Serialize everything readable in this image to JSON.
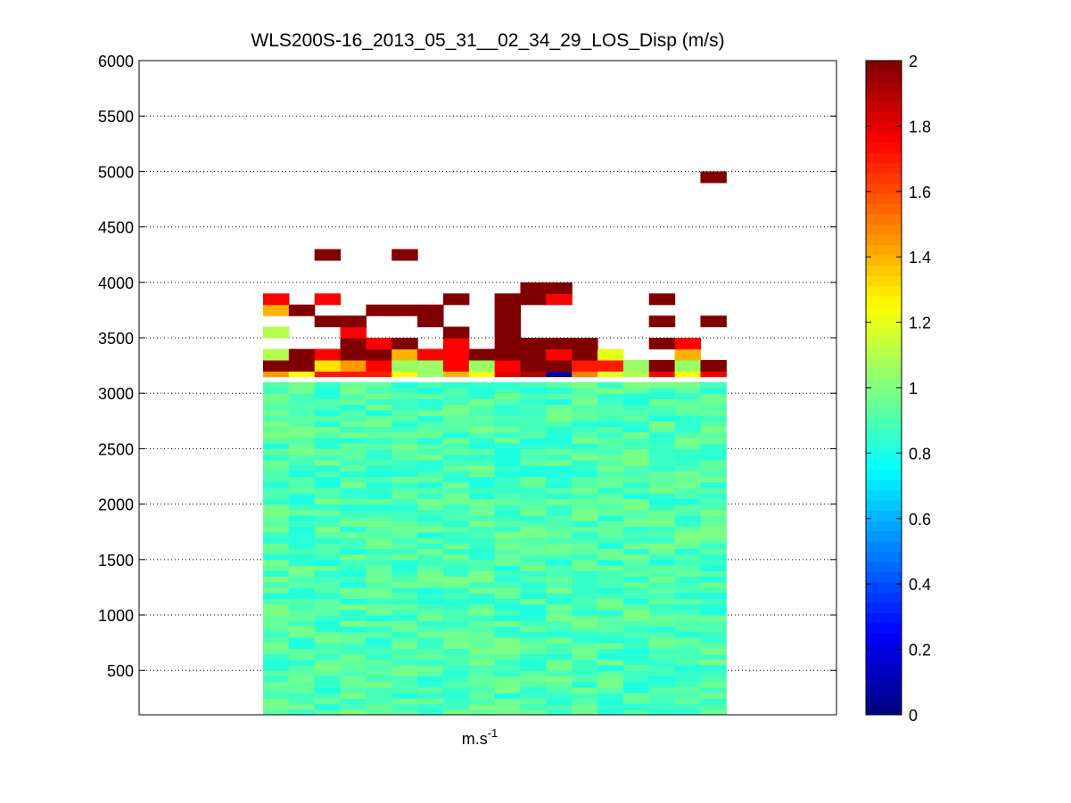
{
  "chart_data": {
    "type": "heatmap",
    "title": "WLS200S-16_2013_05_31__02_34_29_LOS_Disp (m/s)",
    "xlabel": "m.s",
    "xlabel_superscript": "-1",
    "ylabel": "",
    "ylim": [
      100,
      6000
    ],
    "yticks": [
      500,
      1000,
      1500,
      2000,
      2500,
      3000,
      3500,
      4000,
      4500,
      5000,
      5500,
      6000
    ],
    "grid": "y-dotted",
    "colormap": "jet",
    "clim": [
      0,
      2
    ],
    "colorbar_ticks": [
      0,
      0.2,
      0.4,
      0.6,
      0.8,
      1,
      1.2,
      1.4,
      1.6,
      1.8,
      2
    ],
    "n_columns": 18,
    "bin_height": 50,
    "profile_top": 3100,
    "profile": {
      "base": 0.9,
      "spread": 0.1,
      "bins": [
        [
          3100,
          3150,
          [
            0.6,
            0.75,
            1.3,
            1.25,
            0.45,
            0.7,
            1.1,
            1.3,
            1.2,
            0.95,
            0.85,
            0.95,
            0.9,
            0.85,
            0.9,
            1.0,
            0.95,
            0.9
          ]
        ]
      ]
    },
    "cells": [
      [
        3150,
        3200,
        [
          1.45,
          1.25,
          1.7,
          1.7,
          1.7,
          1.25,
          1.05,
          1.4,
          1.25,
          1.8,
          1.9,
          0.05,
          1.5,
          1.2,
          1.1,
          1.75,
          1.25,
          1.75
        ]
      ],
      [
        3200,
        3300,
        [
          2,
          2,
          1.3,
          1.45,
          1.75,
          1.05,
          1.05,
          1.75,
          1.05,
          1.75,
          2,
          2,
          1.7,
          1.7,
          1.05,
          2,
          1.05,
          2
        ]
      ],
      [
        3300,
        3400,
        [
          1.1,
          2,
          1.75,
          2,
          2,
          1.4,
          1.75,
          1.75,
          2,
          2,
          2,
          1.75,
          2,
          1.2,
          null,
          null,
          1.4,
          null
        ]
      ],
      [
        3400,
        3500,
        [
          null,
          null,
          null,
          2,
          1.75,
          2,
          null,
          1.75,
          null,
          2,
          2,
          2,
          2,
          null,
          null,
          2,
          1.75,
          null
        ]
      ],
      [
        3500,
        3600,
        [
          1.1,
          null,
          null,
          1.75,
          null,
          null,
          null,
          2,
          null,
          2,
          null,
          null,
          null,
          null,
          null,
          null,
          null,
          null
        ]
      ],
      [
        3600,
        3700,
        [
          null,
          null,
          2,
          2,
          null,
          null,
          2,
          null,
          null,
          2,
          null,
          null,
          null,
          null,
          null,
          2,
          null,
          2
        ]
      ],
      [
        3700,
        3800,
        [
          1.4,
          2,
          null,
          null,
          2,
          2,
          2,
          null,
          null,
          2,
          null,
          null,
          null,
          null,
          null,
          null,
          null,
          null
        ]
      ],
      [
        3800,
        3900,
        [
          1.75,
          null,
          1.75,
          null,
          null,
          null,
          null,
          2,
          null,
          2,
          2,
          1.75,
          null,
          null,
          null,
          2,
          null,
          null
        ]
      ],
      [
        3900,
        4000,
        [
          null,
          null,
          null,
          null,
          null,
          null,
          null,
          null,
          null,
          null,
          2,
          2,
          null,
          null,
          null,
          null,
          null,
          null
        ]
      ],
      [
        4200,
        4300,
        [
          null,
          null,
          2,
          null,
          null,
          2,
          null,
          null,
          null,
          null,
          null,
          null,
          null,
          null,
          null,
          null,
          null,
          null
        ]
      ],
      [
        4900,
        5000,
        [
          null,
          null,
          null,
          null,
          null,
          null,
          null,
          null,
          null,
          null,
          null,
          null,
          null,
          null,
          null,
          null,
          null,
          2
        ]
      ]
    ]
  }
}
